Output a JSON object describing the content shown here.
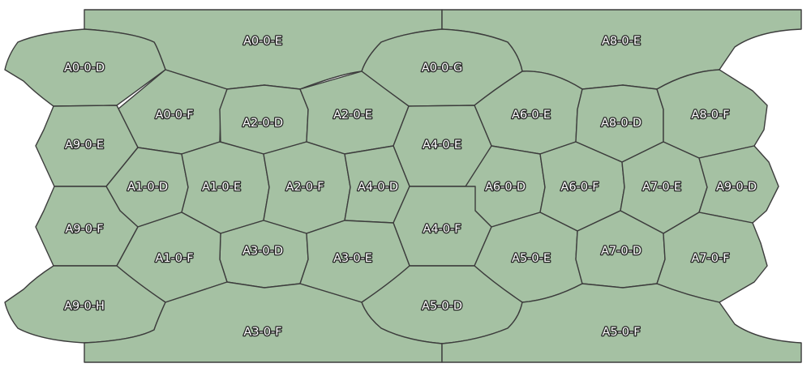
{
  "map": {
    "fill_color": "#a5c1a3",
    "border_color": "#3c3c3c",
    "label_fill": "#ffffff",
    "label_outline": "#262626",
    "cells": [
      {
        "id": "A0-0-E",
        "label": "A0-0-E"
      },
      {
        "id": "A8-0-E",
        "label": "A8-0-E"
      },
      {
        "id": "A0-0-D",
        "label": "A0-0-D"
      },
      {
        "id": "A0-0-G",
        "label": "A0-0-G"
      },
      {
        "id": "A0-0-F",
        "label": "A0-0-F"
      },
      {
        "id": "A2-0-D",
        "label": "A2-0-D"
      },
      {
        "id": "A2-0-E",
        "label": "A2-0-E"
      },
      {
        "id": "A6-0-E",
        "label": "A6-0-E"
      },
      {
        "id": "A8-0-D",
        "label": "A8-0-D"
      },
      {
        "id": "A8-0-F",
        "label": "A8-0-F"
      },
      {
        "id": "A9-0-E",
        "label": "A9-0-E"
      },
      {
        "id": "A4-0-E",
        "label": "A4-0-E"
      },
      {
        "id": "A1-0-D",
        "label": "A1-0-D"
      },
      {
        "id": "A1-0-E",
        "label": "A1-0-E"
      },
      {
        "id": "A2-0-F",
        "label": "A2-0-F"
      },
      {
        "id": "A4-0-D",
        "label": "A4-0-D"
      },
      {
        "id": "A6-0-D",
        "label": "A6-0-D"
      },
      {
        "id": "A6-0-F",
        "label": "A6-0-F"
      },
      {
        "id": "A7-0-E",
        "label": "A7-0-E"
      },
      {
        "id": "A9-0-D",
        "label": "A9-0-D"
      },
      {
        "id": "A9-0-F",
        "label": "A9-0-F"
      },
      {
        "id": "A4-0-F",
        "label": "A4-0-F"
      },
      {
        "id": "A3-0-D",
        "label": "A3-0-D"
      },
      {
        "id": "A1-0-F",
        "label": "A1-0-F"
      },
      {
        "id": "A3-0-E",
        "label": "A3-0-E"
      },
      {
        "id": "A5-0-E",
        "label": "A5-0-E"
      },
      {
        "id": "A7-0-D",
        "label": "A7-0-D"
      },
      {
        "id": "A7-0-F",
        "label": "A7-0-F"
      },
      {
        "id": "A9-0-H",
        "label": "A9-0-H"
      },
      {
        "id": "A5-0-D",
        "label": "A5-0-D"
      },
      {
        "id": "A3-0-F",
        "label": "A3-0-F"
      },
      {
        "id": "A5-0-F",
        "label": "A5-0-F"
      }
    ]
  }
}
